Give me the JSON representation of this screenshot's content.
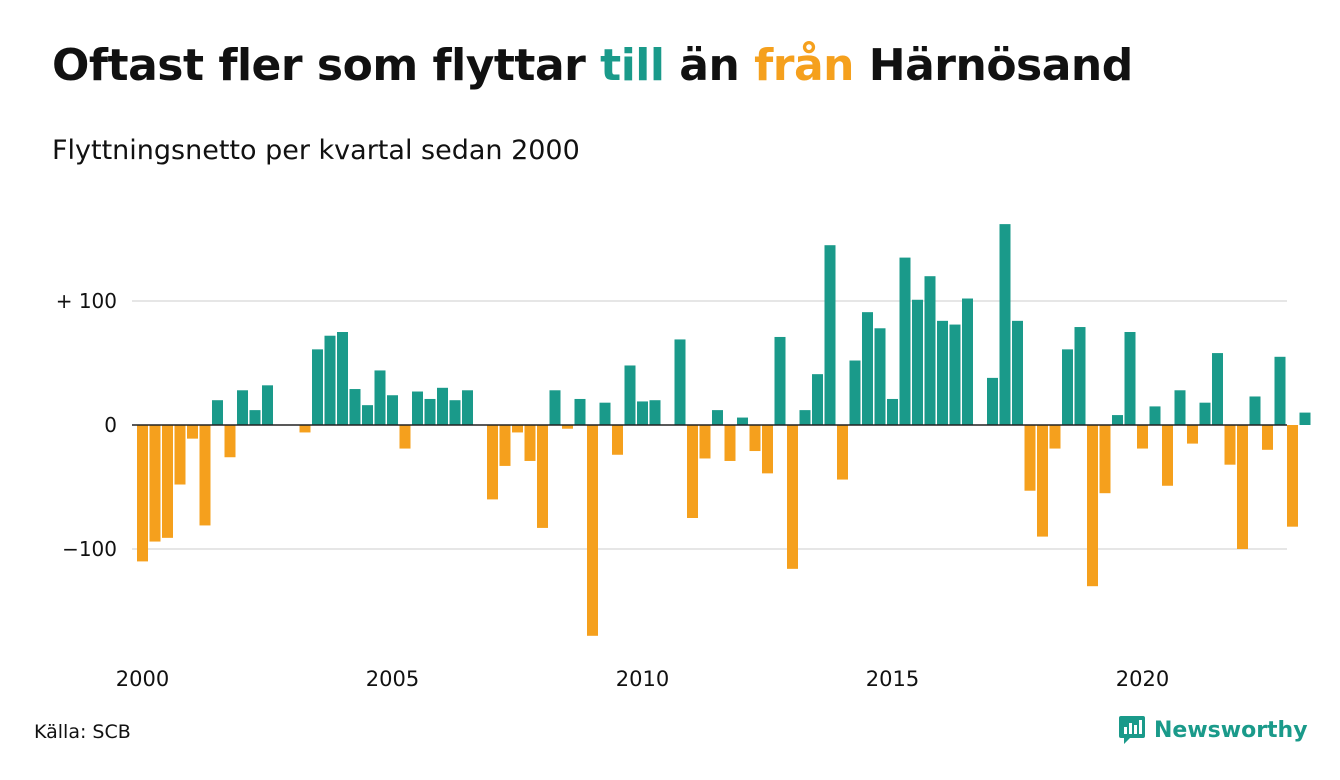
{
  "title_parts": [
    "Oftast fler som flyttar ",
    "till",
    " än ",
    "från",
    " Härnösand"
  ],
  "subtitle": "Flyttningsnetto per kvartal sedan 2000",
  "source": "Källa: SCB",
  "brand": "Newsworthy",
  "colors": {
    "positive": "#1a9a8a",
    "negative": "#f5a01d",
    "text": "#111111",
    "grid": "#dddddd",
    "zero": "#222222"
  },
  "chart_data": {
    "type": "bar",
    "x_start": "2000 Q1",
    "frequency": "quarterly",
    "ylim": [
      -175,
      165
    ],
    "yticks": [
      -100,
      0,
      100
    ],
    "ytick_labels": [
      "−100",
      "0",
      "+ 100"
    ],
    "xticks": [
      2000,
      2005,
      2010,
      2015,
      2020
    ],
    "grid": "horizontal",
    "values": [
      -110,
      -94,
      -91,
      -48,
      -11,
      -81,
      20,
      -26,
      28,
      12,
      32,
      0,
      0,
      -6,
      61,
      72,
      75,
      29,
      16,
      44,
      24,
      -19,
      27,
      21,
      30,
      20,
      28,
      0,
      -60,
      -33,
      -6,
      -29,
      -83,
      28,
      -3,
      21,
      -170,
      18,
      -24,
      48,
      19,
      20,
      0,
      69,
      -75,
      -27,
      12,
      -29,
      6,
      -21,
      -39,
      71,
      -116,
      12,
      41,
      145,
      -44,
      52,
      91,
      78,
      21,
      135,
      101,
      120,
      84,
      81,
      102,
      0,
      38,
      162,
      84,
      -53,
      -90,
      -19,
      61,
      79,
      -130,
      -55,
      8,
      75,
      -19,
      15,
      -49,
      28,
      -15,
      18,
      58,
      -32,
      -100,
      23,
      -20,
      55,
      -82,
      10
    ]
  }
}
